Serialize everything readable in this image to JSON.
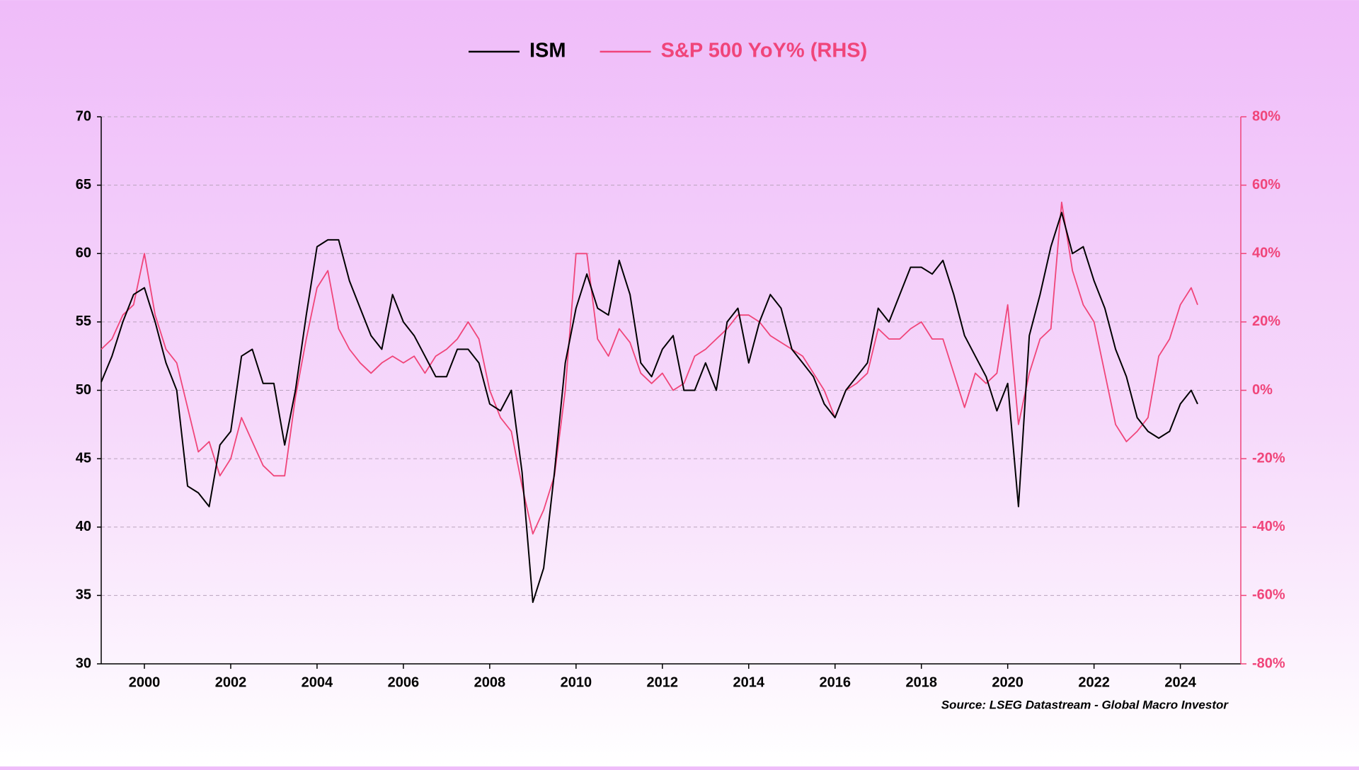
{
  "chart_data": {
    "type": "line",
    "legend": "top",
    "grid": true,
    "xlim": [
      1999,
      2025.4
    ],
    "xticks": [
      2000,
      2002,
      2004,
      2006,
      2008,
      2010,
      2012,
      2014,
      2016,
      2018,
      2020,
      2022,
      2024
    ],
    "ylim": [
      30,
      70
    ],
    "yticks": [
      30,
      35,
      40,
      45,
      50,
      55,
      60,
      65,
      70
    ],
    "y2lim": [
      -80,
      80
    ],
    "y2ticks": [
      {
        "value": -80,
        "label": "-80%"
      },
      {
        "value": -60,
        "label": "-60%"
      },
      {
        "value": -40,
        "label": "-40%"
      },
      {
        "value": -20,
        "label": "-20%"
      },
      {
        "value": 0,
        "label": "0%"
      },
      {
        "value": 20,
        "label": "20%"
      },
      {
        "value": 40,
        "label": "40%"
      },
      {
        "value": 60,
        "label": "60%"
      },
      {
        "value": 80,
        "label": "80%"
      }
    ],
    "source": "Source: LSEG Datastream - Global Macro Investor",
    "x": [
      1999.0,
      1999.25,
      1999.5,
      1999.75,
      2000.0,
      2000.25,
      2000.5,
      2000.75,
      2001.0,
      2001.25,
      2001.5,
      2001.75,
      2002.0,
      2002.25,
      2002.5,
      2002.75,
      2003.0,
      2003.25,
      2003.5,
      2003.75,
      2004.0,
      2004.25,
      2004.5,
      2004.75,
      2005.0,
      2005.25,
      2005.5,
      2005.75,
      2006.0,
      2006.25,
      2006.5,
      2006.75,
      2007.0,
      2007.25,
      2007.5,
      2007.75,
      2008.0,
      2008.25,
      2008.5,
      2008.75,
      2009.0,
      2009.25,
      2009.5,
      2009.75,
      2010.0,
      2010.25,
      2010.5,
      2010.75,
      2011.0,
      2011.25,
      2011.5,
      2011.75,
      2012.0,
      2012.25,
      2012.5,
      2012.75,
      2013.0,
      2013.25,
      2013.5,
      2013.75,
      2014.0,
      2014.25,
      2014.5,
      2014.75,
      2015.0,
      2015.25,
      2015.5,
      2015.75,
      2016.0,
      2016.25,
      2016.5,
      2016.75,
      2017.0,
      2017.25,
      2017.5,
      2017.75,
      2018.0,
      2018.25,
      2018.5,
      2018.75,
      2019.0,
      2019.25,
      2019.5,
      2019.75,
      2020.0,
      2020.25,
      2020.5,
      2020.75,
      2021.0,
      2021.25,
      2021.5,
      2021.75,
      2022.0,
      2022.25,
      2022.5,
      2022.75,
      2023.0,
      2023.25,
      2023.5,
      2023.75,
      2024.0,
      2024.25,
      2024.4
    ],
    "series": [
      {
        "name": "ISM",
        "color": "#000000",
        "values": [
          50.6,
          52.5,
          55,
          57,
          57.5,
          55,
          52,
          50,
          43,
          42.5,
          41.5,
          46,
          47,
          52.5,
          53,
          50.5,
          50.5,
          46,
          50,
          55.5,
          60.5,
          61,
          61,
          58,
          56,
          54,
          53,
          57,
          55,
          54,
          52.5,
          51,
          51,
          53,
          53,
          52,
          49,
          48.5,
          50,
          44,
          34.5,
          37,
          44,
          52,
          56,
          58.5,
          56,
          55.5,
          59.5,
          57,
          52,
          51,
          53,
          54,
          50,
          50,
          52,
          50,
          55,
          56,
          52,
          55,
          57,
          56,
          53,
          52,
          51,
          49,
          48,
          50,
          51,
          52,
          56,
          55,
          57,
          59,
          59,
          58.5,
          59.5,
          57,
          54,
          52.5,
          51,
          48.5,
          50.5,
          41.5,
          54,
          57,
          60.5,
          63,
          60,
          60.5,
          58,
          56,
          53,
          51,
          48,
          47,
          46.5,
          47,
          49,
          50,
          49
        ]
      },
      {
        "name": "S&P 500 YoY% (RHS)",
        "color": "#f0457a",
        "axis": "y2",
        "values": [
          12,
          15,
          22,
          25,
          40,
          22,
          12,
          8,
          -5,
          -18,
          -15,
          -25,
          -20,
          -8,
          -15,
          -22,
          -25,
          -25,
          -2,
          15,
          30,
          35,
          18,
          12,
          8,
          5,
          8,
          10,
          8,
          10,
          5,
          10,
          12,
          15,
          20,
          15,
          0,
          -8,
          -12,
          -28,
          -42,
          -35,
          -25,
          0,
          40,
          40,
          15,
          10,
          18,
          14,
          5,
          2,
          5,
          0,
          2,
          10,
          12,
          15,
          18,
          22,
          22,
          20,
          16,
          14,
          12,
          10,
          5,
          0,
          -8,
          0,
          2,
          5,
          18,
          15,
          15,
          18,
          20,
          15,
          15,
          5,
          -5,
          5,
          2,
          5,
          25,
          -10,
          5,
          15,
          18,
          55,
          35,
          25,
          20,
          5,
          -10,
          -15,
          -12,
          -8,
          10,
          15,
          25,
          30,
          25
        ]
      }
    ]
  }
}
